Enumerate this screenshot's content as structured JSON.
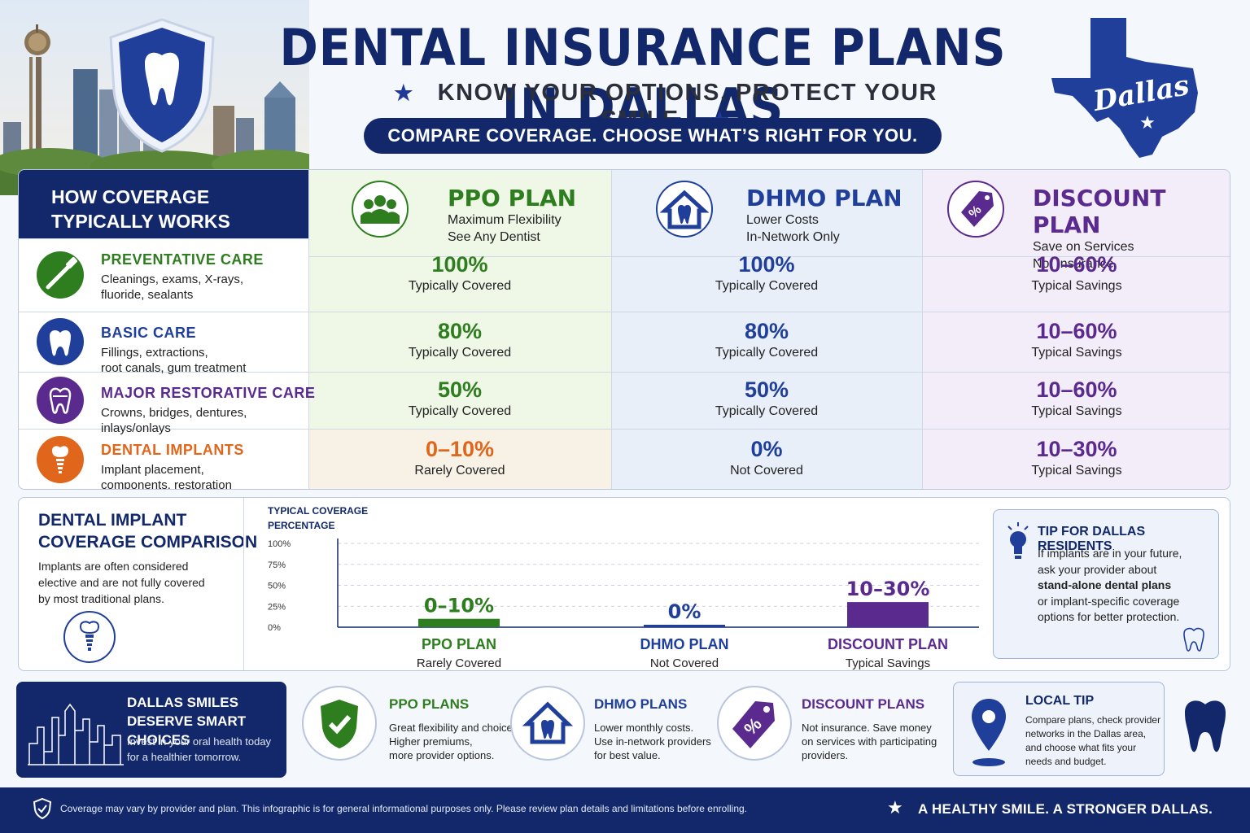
{
  "header": {
    "title": "DENTAL INSURANCE PLANS IN DALLAS",
    "subtitle": "KNOW YOUR OPTIONS.  PROTECT YOUR SMILE.",
    "tagline": "COMPARE COVERAGE.  CHOOSE WHAT’S RIGHT FOR YOU.",
    "map_label": "Dallas"
  },
  "table": {
    "left_header": [
      "HOW COVERAGE",
      "TYPICALLY WORKS"
    ],
    "plans": [
      {
        "name": "PPO PLAN",
        "sub1": "Maximum Flexibility",
        "sub2": "See Any Dentist",
        "color": "#2e7d1f",
        "icon": "people-icon"
      },
      {
        "name": "DHMO PLAN",
        "sub1": "Lower Costs",
        "sub2": "In-Network Only",
        "color": "#1f3f9a",
        "icon": "house-tooth-icon"
      },
      {
        "name": "DISCOUNT PLAN",
        "sub1": "Save on Services",
        "sub2": "Not Insurance",
        "color": "#5b2a8f",
        "icon": "discount-tag-icon"
      }
    ],
    "rows": [
      {
        "title": "PREVENTATIVE CARE",
        "desc1": "Cleanings, exams, X-rays,",
        "desc2": "fluoride, sealants",
        "color": "#2e7d1f",
        "icon": "toothbrush-icon",
        "ppo": {
          "value": "100%",
          "note": "Typically Covered"
        },
        "dhmo": {
          "value": "100%",
          "note": "Typically Covered"
        },
        "disc": {
          "value": "10–60%",
          "note": "Typical Savings"
        }
      },
      {
        "title": "BASIC CARE",
        "desc1": "Fillings, extractions,",
        "desc2": "root canals, gum treatment",
        "color": "#1f3f9a",
        "icon": "tooth-icon",
        "ppo": {
          "value": "80%",
          "note": "Typically Covered"
        },
        "dhmo": {
          "value": "80%",
          "note": "Typically Covered"
        },
        "disc": {
          "value": "10–60%",
          "note": "Typical Savings"
        }
      },
      {
        "title": "MAJOR RESTORATIVE CARE",
        "desc1": "Crowns, bridges, dentures,",
        "desc2": "inlays/onlays",
        "color": "#5b2a8f",
        "icon": "crown-tooth-icon",
        "ppo": {
          "value": "50%",
          "note": "Typically Covered"
        },
        "dhmo": {
          "value": "50%",
          "note": "Typically Covered"
        },
        "disc": {
          "value": "10–60%",
          "note": "Typical Savings"
        }
      },
      {
        "title": "DENTAL IMPLANTS",
        "desc1": "Implant placement,",
        "desc2": "components, restoration",
        "color": "#e0661b",
        "icon": "implant-icon",
        "ppo": {
          "value": "0–10%",
          "note": "Rarely Covered"
        },
        "dhmo": {
          "value": "0%",
          "note": "Not Covered"
        },
        "disc": {
          "value": "10–30%",
          "note": "Typical Savings"
        }
      }
    ]
  },
  "implant_section": {
    "title1": "DENTAL IMPLANT",
    "title2": "COVERAGE COMPARISON",
    "desc": [
      "Implants are often considered",
      "elective and are not fully covered",
      "by most traditional plans."
    ]
  },
  "chart_data": {
    "type": "bar",
    "ylabel": "TYPICAL COVERAGE PERCENTAGE",
    "ylim": [
      0,
      100
    ],
    "yticks": [
      "100%",
      "75%",
      "50%",
      "25%",
      "0%"
    ],
    "categories": [
      "PPO PLAN",
      "DHMO PLAN",
      "DISCOUNT PLAN"
    ],
    "sublabels": [
      "Rarely Covered",
      "Not Covered",
      "Typical Savings"
    ],
    "values": [
      10,
      0,
      30
    ],
    "labels": [
      "0–10%",
      "0%",
      "10–30%"
    ],
    "colors": [
      "#2e7d1f",
      "#1f3f9a",
      "#5b2a8f"
    ]
  },
  "tip": {
    "title": "TIP FOR DALLAS RESIDENTS",
    "line1": "If implants are in your future,",
    "line2": "ask your provider about",
    "bold": "stand-alone dental plans",
    "line3": "or implant-specific coverage",
    "line4": "options for better protection."
  },
  "bottom": {
    "smiles_title1": "DALLAS SMILES",
    "smiles_title2": "DESERVE SMART CHOICES",
    "smiles_text1": "Invest in your oral health today",
    "smiles_text2": "for a healthier tomorrow.",
    "cards": [
      {
        "title": "PPO PLANS",
        "lines": [
          "Great flexibility and choice.",
          "Higher premiums,",
          "more provider options."
        ],
        "color": "#2e7d1f"
      },
      {
        "title": "DHMO PLANS",
        "lines": [
          "Lower monthly costs.",
          "Use in-network providers",
          "for best value."
        ],
        "color": "#1f3f9a"
      },
      {
        "title": "DISCOUNT PLANS",
        "lines": [
          "Not insurance. Save money",
          "on services with participating",
          "providers."
        ],
        "color": "#5b2a8f"
      }
    ],
    "local_title": "LOCAL TIP",
    "local_lines": [
      "Compare plans, check provider",
      "networks in the Dallas area,",
      "and choose what fits your",
      "needs and budget."
    ]
  },
  "footer": {
    "disclaimer": "Coverage may vary by provider and plan. This infographic is for general informational purposes only. Please review plan details and limitations before enrolling.",
    "slogan": "A HEALTHY SMILE. A STRONGER DALLAS."
  }
}
